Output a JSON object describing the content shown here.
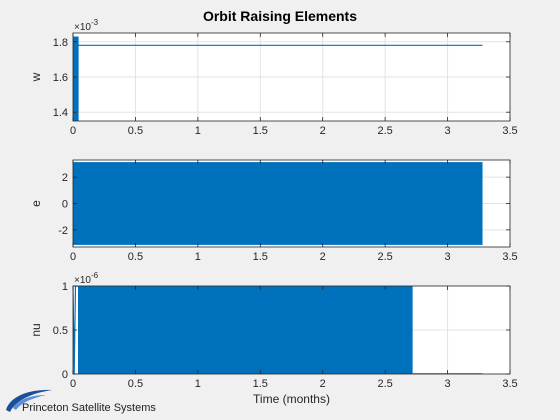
{
  "figure": {
    "title": "Orbit Raising Elements",
    "logo_text": "Princeton Satellite Systems",
    "colors": {
      "series": "#0072BD",
      "axes_bg": "#ffffff",
      "figure_bg": "#f0f0f0",
      "grid": "#e3e3e3",
      "logo_blue": "#1b4f9c"
    }
  },
  "chart_data": [
    {
      "type": "line",
      "ylabel": "w",
      "xlabel": "",
      "y_exponent": "×10",
      "y_exponent_power": "-3",
      "xlim": [
        0,
        3.5
      ],
      "ylim": [
        1.35,
        1.85
      ],
      "xticks": [
        "0",
        "0.5",
        "1",
        "1.5",
        "2",
        "2.5",
        "3",
        "3.5"
      ],
      "yticks": [
        "1.4",
        "1.6",
        "1.8"
      ],
      "ytick_values": [
        1.4,
        1.6,
        1.8
      ],
      "grid": true,
      "series": [
        {
          "x": [
            0.01,
            3.28
          ],
          "y": [
            1.78,
            1.78
          ]
        },
        {
          "band": {
            "x": [
              0.0,
              0.045
            ],
            "y": [
              1.35,
              1.83
            ]
          }
        }
      ]
    },
    {
      "type": "line",
      "ylabel": "e",
      "xlabel": "",
      "xlim": [
        0,
        3.5
      ],
      "ylim": [
        -3.3,
        3.3
      ],
      "xticks": [
        "0",
        "0.5",
        "1",
        "1.5",
        "2",
        "2.5",
        "3",
        "3.5"
      ],
      "yticks": [
        "-2",
        "0",
        "2"
      ],
      "ytick_values": [
        -2,
        0,
        2
      ],
      "grid": true,
      "series": [
        {
          "band": {
            "x": [
              0.0,
              3.28
            ],
            "y": [
              -3.14,
              3.14
            ]
          }
        }
      ]
    },
    {
      "type": "line",
      "ylabel": "nu",
      "xlabel": "Time (months)",
      "y_exponent": "×10",
      "y_exponent_power": "-6",
      "xlim": [
        0,
        3.5
      ],
      "ylim": [
        0,
        1
      ],
      "xticks": [
        "0",
        "0.5",
        "1",
        "1.5",
        "2",
        "2.5",
        "3",
        "3.5"
      ],
      "yticks": [
        "0",
        "0.5",
        "1"
      ],
      "ytick_values": [
        0,
        0.5,
        1
      ],
      "grid": true,
      "series": [
        {
          "band": {
            "x": [
              0.04,
              2.72
            ],
            "y": [
              0,
              1
            ]
          }
        },
        {
          "x": [
            0.0,
            0.01,
            0.02,
            0.04
          ],
          "y": [
            1,
            0,
            1,
            1
          ]
        },
        {
          "x": [
            2.72,
            3.28
          ],
          "y": [
            0.002,
            0.002
          ]
        }
      ]
    }
  ]
}
